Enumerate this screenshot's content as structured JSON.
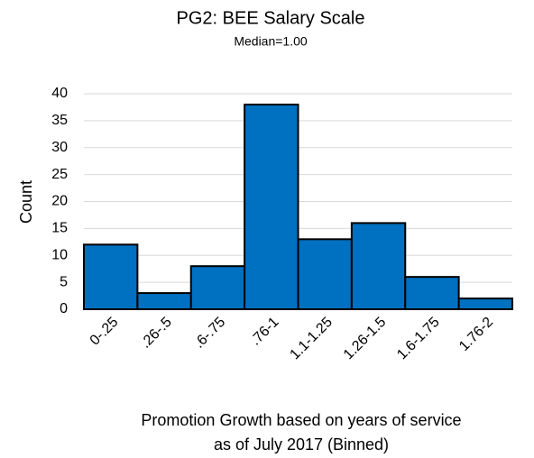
{
  "chart_data": {
    "type": "bar",
    "title": "PG2: BEE Salary Scale",
    "subtitle": "Median=1.00",
    "ylabel": "Count",
    "xlabel": [
      "Promotion Growth based on years of service",
      "as of July 2017 (Binned)"
    ],
    "categories": [
      "0-.25",
      ".26-.5",
      ".6-.75",
      ".76-1",
      "1.1-1.25",
      "1.26-1.5",
      "1.6-1.75",
      "1.76-2"
    ],
    "values": [
      12,
      3,
      8,
      38,
      13,
      16,
      6,
      2
    ],
    "color": "#0070c0",
    "ylim": [
      0,
      40
    ],
    "yticks": [
      0,
      5,
      10,
      15,
      20,
      25,
      30,
      35,
      40
    ],
    "grid": true
  }
}
